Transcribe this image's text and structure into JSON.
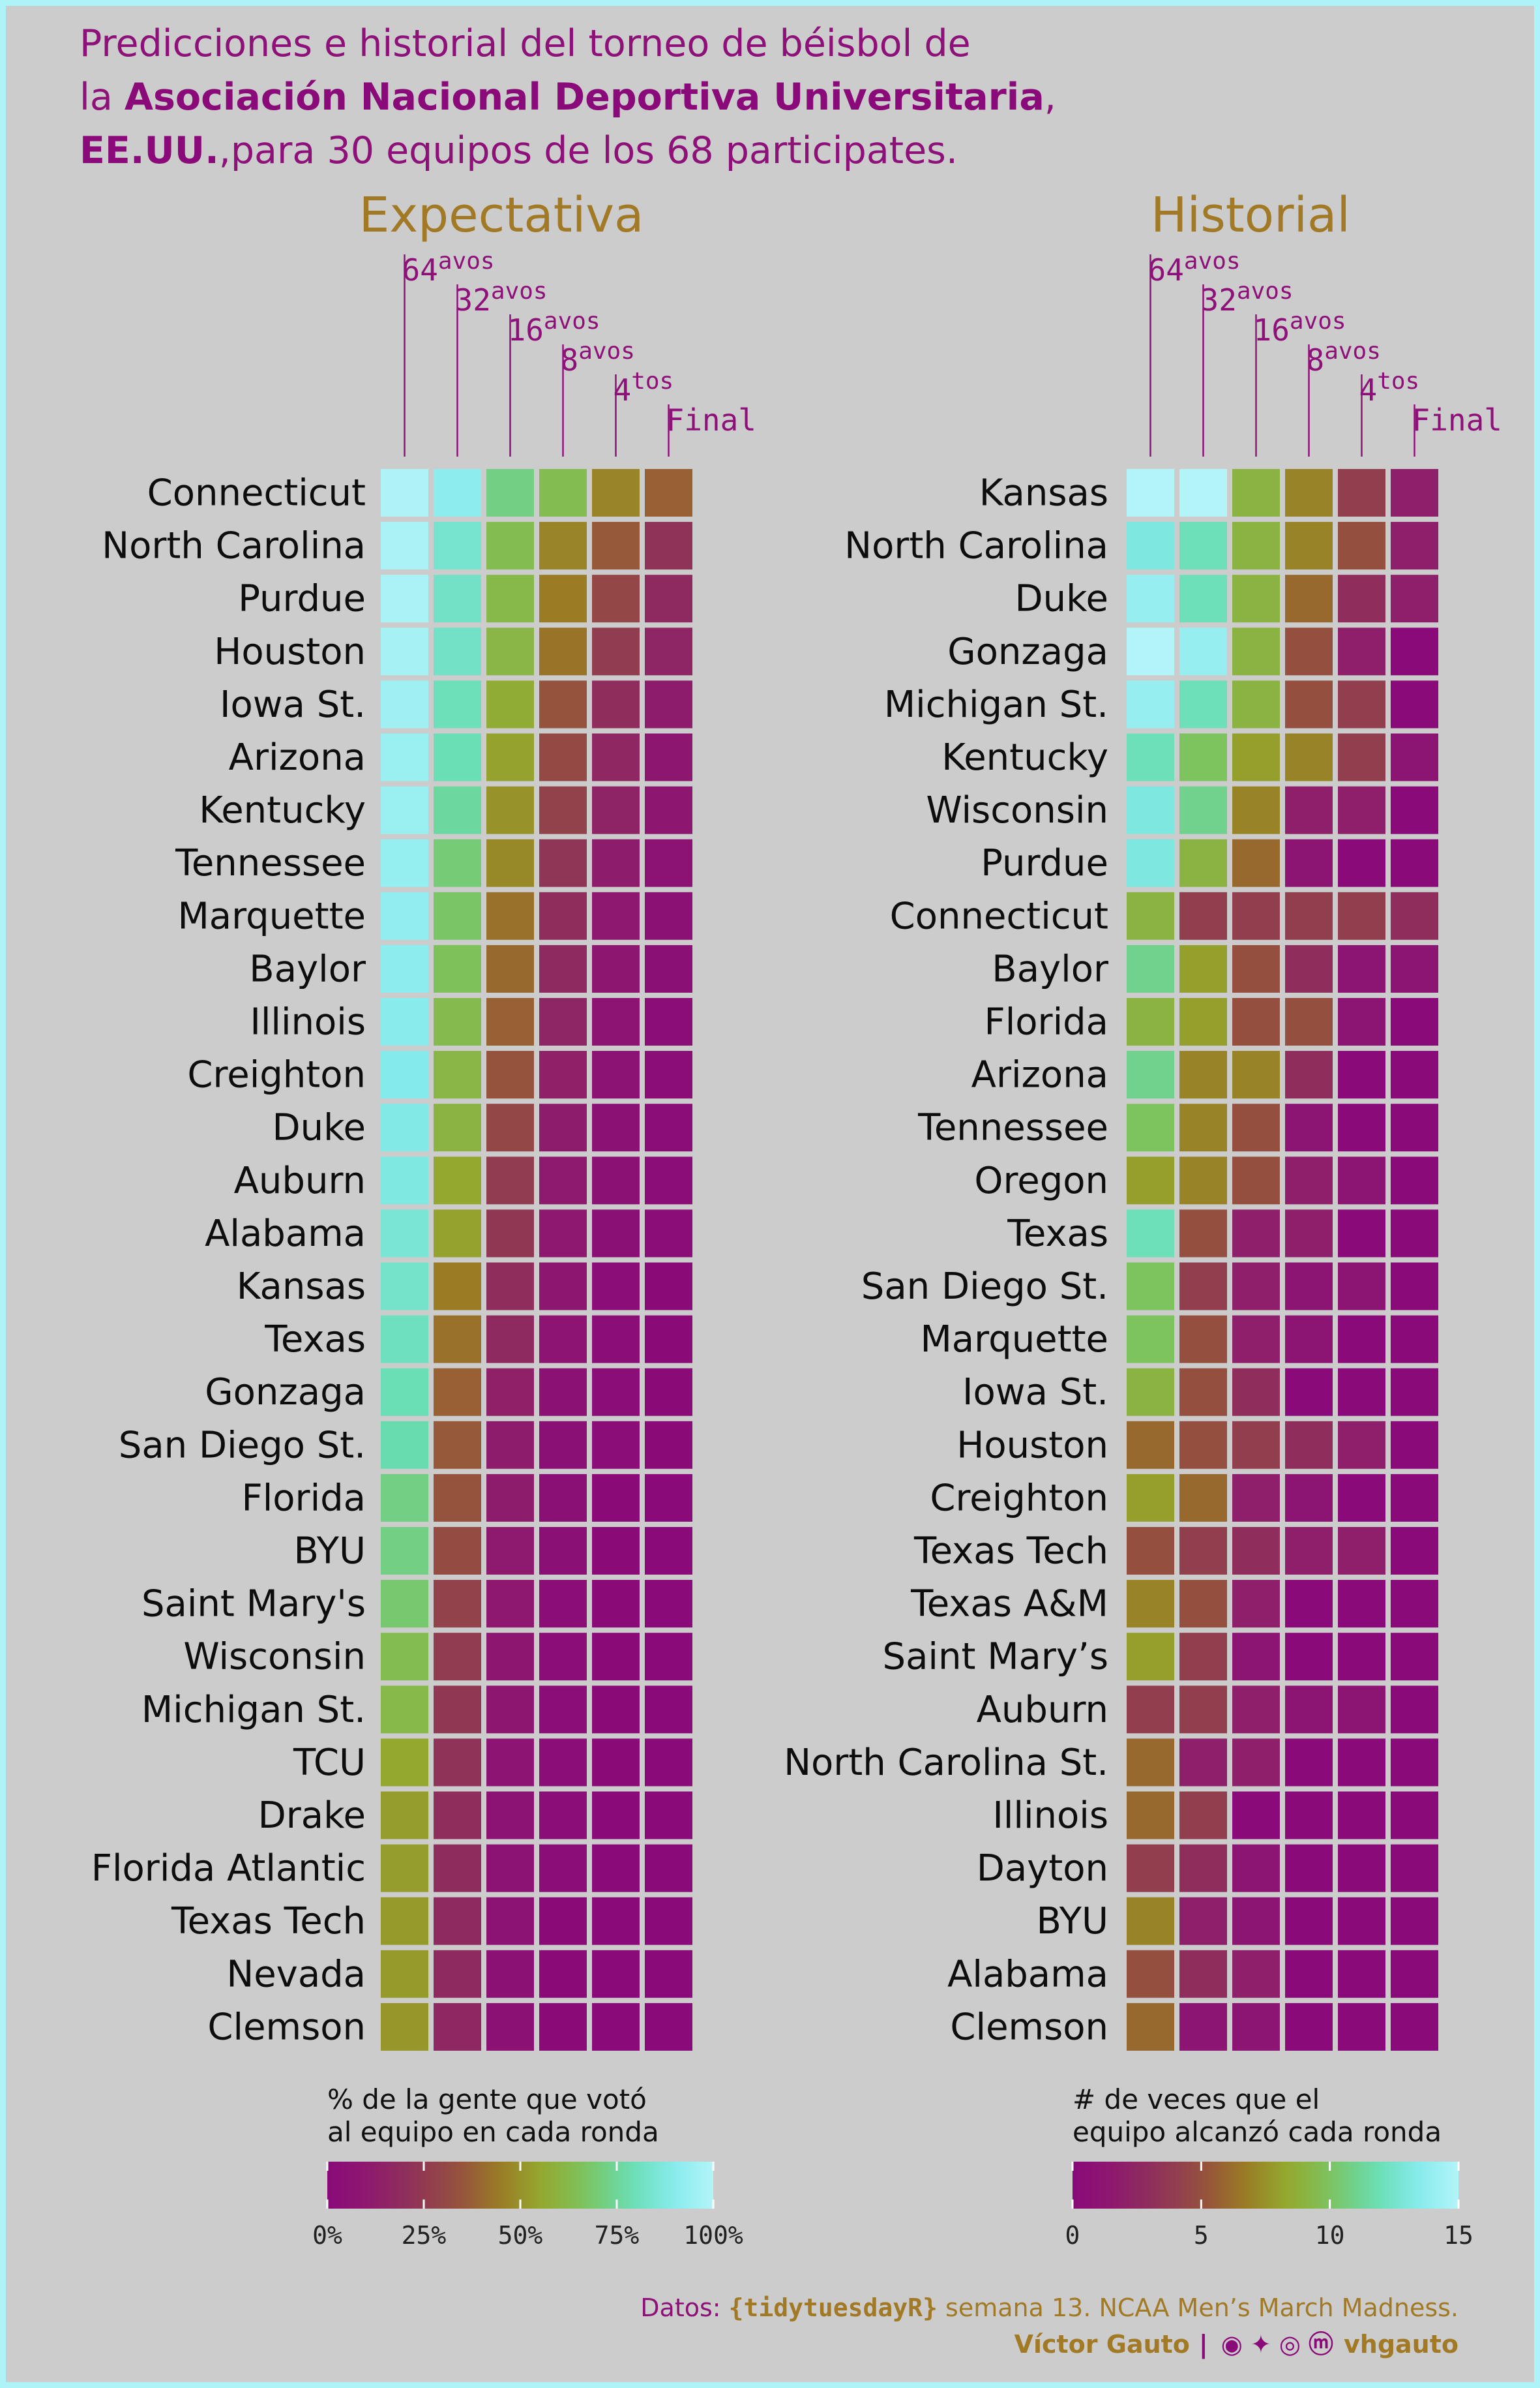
{
  "title": {
    "line1": "Predicciones e historial del torneo de béisbol de",
    "line2_pre": "la ",
    "line2_bold": "Asociación Nacional Deportiva Universitaria",
    "line2_post": ",",
    "line3_bold": "EE.UU.",
    "line3_post": ",para 30 equipos de los 68 participates."
  },
  "colors": {
    "palette": [
      "#8a0a79",
      "#8e1a6e",
      "#8f3358",
      "#954f3f",
      "#9a7a25",
      "#94a92e",
      "#7dc35e",
      "#67dcad",
      "#84eaeb",
      "#b3f4f8"
    ],
    "background": "#cccccc",
    "frame": "#aef3f7",
    "panel_title": "#a27a26",
    "round_label": "#8e1179"
  },
  "chart_data": [
    {
      "type": "heatmap",
      "title": "Expectativa",
      "rounds": [
        {
          "base": "64",
          "sup": "avos"
        },
        {
          "base": "32",
          "sup": "avos"
        },
        {
          "base": "16",
          "sup": "avos"
        },
        {
          "base": "8",
          "sup": "avos"
        },
        {
          "base": "4",
          "sup": "tos"
        },
        {
          "base": "Final",
          "sup": ""
        }
      ],
      "scale": {
        "min": 0,
        "max": 100,
        "unit": "%"
      },
      "legend": {
        "title_line1": "% de la gente que votó",
        "title_line2": "al equipo en cada ronda",
        "ticks": [
          0,
          25,
          50,
          75,
          100
        ],
        "tick_labels": [
          "0%",
          "25%",
          "50%",
          "75%",
          "100%"
        ]
      },
      "teams": [
        {
          "name": "Connecticut",
          "values": [
            99,
            91,
            72,
            64,
            47,
            38
          ]
        },
        {
          "name": "North Carolina",
          "values": [
            98,
            84,
            64,
            47,
            36,
            22
          ]
        },
        {
          "name": "Purdue",
          "values": [
            98,
            82,
            62,
            45,
            30,
            18
          ]
        },
        {
          "name": "Houston",
          "values": [
            97,
            82,
            61,
            43,
            26,
            16
          ]
        },
        {
          "name": "Iowa St.",
          "values": [
            95,
            80,
            57,
            34,
            20,
            12
          ]
        },
        {
          "name": "Arizona",
          "values": [
            94,
            79,
            54,
            31,
            17,
            9
          ]
        },
        {
          "name": "Kentucky",
          "values": [
            94,
            76,
            50,
            28,
            15,
            8
          ]
        },
        {
          "name": "Tennessee",
          "values": [
            93,
            70,
            48,
            23,
            12,
            6
          ]
        },
        {
          "name": "Marquette",
          "values": [
            92,
            68,
            42,
            20,
            10,
            5
          ]
        },
        {
          "name": "Baylor",
          "values": [
            91,
            66,
            40,
            18,
            8,
            4
          ]
        },
        {
          "name": "Illinois",
          "values": [
            90,
            63,
            38,
            16,
            7,
            3
          ]
        },
        {
          "name": "Creighton",
          "values": [
            89,
            61,
            34,
            14,
            6,
            3
          ]
        },
        {
          "name": "Duke",
          "values": [
            88,
            60,
            30,
            12,
            5,
            2
          ]
        },
        {
          "name": "Auburn",
          "values": [
            87,
            55,
            26,
            11,
            5,
            2
          ]
        },
        {
          "name": "Alabama",
          "values": [
            85,
            54,
            24,
            10,
            4,
            2
          ]
        },
        {
          "name": "Kansas",
          "values": [
            83,
            45,
            20,
            8,
            3,
            1
          ]
        },
        {
          "name": "Texas",
          "values": [
            81,
            42,
            18,
            7,
            3,
            1
          ]
        },
        {
          "name": "Gonzaga",
          "values": [
            79,
            38,
            14,
            5,
            2,
            1
          ]
        },
        {
          "name": "San Diego St.",
          "values": [
            78,
            36,
            12,
            4,
            2,
            1
          ]
        },
        {
          "name": "Florida",
          "values": [
            72,
            34,
            12,
            4,
            1,
            0
          ]
        },
        {
          "name": "BYU",
          "values": [
            72,
            32,
            11,
            4,
            1,
            0
          ]
        },
        {
          "name": "Saint Mary's",
          "values": [
            69,
            28,
            10,
            3,
            1,
            0
          ]
        },
        {
          "name": "Wisconsin",
          "values": [
            64,
            26,
            9,
            3,
            1,
            0
          ]
        },
        {
          "name": "Michigan St.",
          "values": [
            62,
            24,
            8,
            2,
            1,
            0
          ]
        },
        {
          "name": "TCU",
          "values": [
            55,
            22,
            7,
            2,
            1,
            0
          ]
        },
        {
          "name": "Drake",
          "values": [
            53,
            20,
            6,
            2,
            0,
            0
          ]
        },
        {
          "name": "Florida Atlantic",
          "values": [
            53,
            19,
            6,
            2,
            0,
            0
          ]
        },
        {
          "name": "Texas Tech",
          "values": [
            52,
            18,
            6,
            1,
            0,
            0
          ]
        },
        {
          "name": "Nevada",
          "values": [
            52,
            18,
            5,
            1,
            0,
            0
          ]
        },
        {
          "name": "Clemson",
          "values": [
            51,
            17,
            5,
            1,
            0,
            0
          ]
        }
      ]
    },
    {
      "type": "heatmap",
      "title": "Historial",
      "rounds": [
        {
          "base": "64",
          "sup": "avos"
        },
        {
          "base": "32",
          "sup": "avos"
        },
        {
          "base": "16",
          "sup": "avos"
        },
        {
          "base": "8",
          "sup": "avos"
        },
        {
          "base": "4",
          "sup": "tos"
        },
        {
          "base": "Final",
          "sup": ""
        }
      ],
      "scale": {
        "min": 0,
        "max": 15,
        "unit": ""
      },
      "legend": {
        "title_line1": "# de veces que el",
        "title_line2": "equipo alcanzó cada ronda",
        "ticks": [
          0,
          5,
          10,
          15
        ],
        "tick_labels": [
          "0",
          "5",
          "10",
          "15"
        ]
      },
      "teams": [
        {
          "name": "Kansas",
          "values": [
            15,
            15,
            9,
            7,
            4,
            2
          ]
        },
        {
          "name": "North Carolina",
          "values": [
            13,
            12,
            9,
            7,
            5,
            2
          ]
        },
        {
          "name": "Duke",
          "values": [
            14,
            12,
            9,
            6,
            3,
            2
          ]
        },
        {
          "name": "Gonzaga",
          "values": [
            15,
            14,
            9,
            5,
            2,
            0
          ]
        },
        {
          "name": "Michigan St.",
          "values": [
            14,
            12,
            9,
            5,
            4,
            0
          ]
        },
        {
          "name": "Kentucky",
          "values": [
            12,
            10,
            8,
            7,
            4,
            1
          ]
        },
        {
          "name": "Wisconsin",
          "values": [
            13,
            11,
            7,
            2,
            2,
            0
          ]
        },
        {
          "name": "Purdue",
          "values": [
            13,
            9,
            6,
            1,
            0,
            0
          ]
        },
        {
          "name": "Connecticut",
          "values": [
            9,
            4,
            4,
            4,
            4,
            3
          ]
        },
        {
          "name": "Baylor",
          "values": [
            11,
            8,
            5,
            3,
            1,
            1
          ]
        },
        {
          "name": "Florida",
          "values": [
            9,
            8,
            5,
            5,
            1,
            0
          ]
        },
        {
          "name": "Arizona",
          "values": [
            11,
            7,
            7,
            3,
            0,
            0
          ]
        },
        {
          "name": "Tennessee",
          "values": [
            10,
            7,
            5,
            1,
            0,
            0
          ]
        },
        {
          "name": "Oregon",
          "values": [
            8,
            7,
            5,
            2,
            1,
            0
          ]
        },
        {
          "name": "Texas",
          "values": [
            12,
            5,
            2,
            2,
            0,
            0
          ]
        },
        {
          "name": "San Diego St.",
          "values": [
            10,
            4,
            2,
            1,
            1,
            0
          ]
        },
        {
          "name": "Marquette",
          "values": [
            10,
            5,
            2,
            1,
            0,
            0
          ]
        },
        {
          "name": "Iowa St.",
          "values": [
            9,
            5,
            3,
            0,
            0,
            0
          ]
        },
        {
          "name": "Houston",
          "values": [
            6,
            5,
            4,
            3,
            2,
            0
          ]
        },
        {
          "name": "Creighton",
          "values": [
            8,
            6,
            2,
            1,
            0,
            0
          ]
        },
        {
          "name": "Texas Tech",
          "values": [
            5,
            4,
            3,
            2,
            2,
            0
          ]
        },
        {
          "name": "Texas A&M",
          "values": [
            7,
            5,
            2,
            0,
            0,
            0
          ]
        },
        {
          "name": "Saint Mary’s",
          "values": [
            8,
            4,
            1,
            0,
            0,
            0
          ]
        },
        {
          "name": "Auburn",
          "values": [
            4,
            4,
            2,
            1,
            1,
            0
          ]
        },
        {
          "name": "North Carolina St.",
          "values": [
            6,
            2,
            2,
            0,
            0,
            0
          ]
        },
        {
          "name": "Illinois",
          "values": [
            6,
            4,
            0,
            0,
            0,
            0
          ]
        },
        {
          "name": "Dayton",
          "values": [
            4,
            3,
            1,
            0,
            0,
            0
          ]
        },
        {
          "name": "BYU",
          "values": [
            7,
            2,
            1,
            0,
            0,
            0
          ]
        },
        {
          "name": "Alabama",
          "values": [
            5,
            3,
            2,
            0,
            0,
            0
          ]
        },
        {
          "name": "Clemson",
          "values": [
            6,
            1,
            1,
            0,
            0,
            0
          ]
        }
      ]
    }
  ],
  "credits": {
    "source_pre": "Datos: ",
    "source_pkg": "{tidytuesdayR}",
    "source_post": " semana 13. NCAA Men’s March Madness.",
    "author": "Víctor Gauto",
    "separator": "|",
    "icons": [
      "github-icon",
      "twitter-icon",
      "instagram-icon",
      "mastodon-icon"
    ],
    "handle": "vhgauto"
  }
}
